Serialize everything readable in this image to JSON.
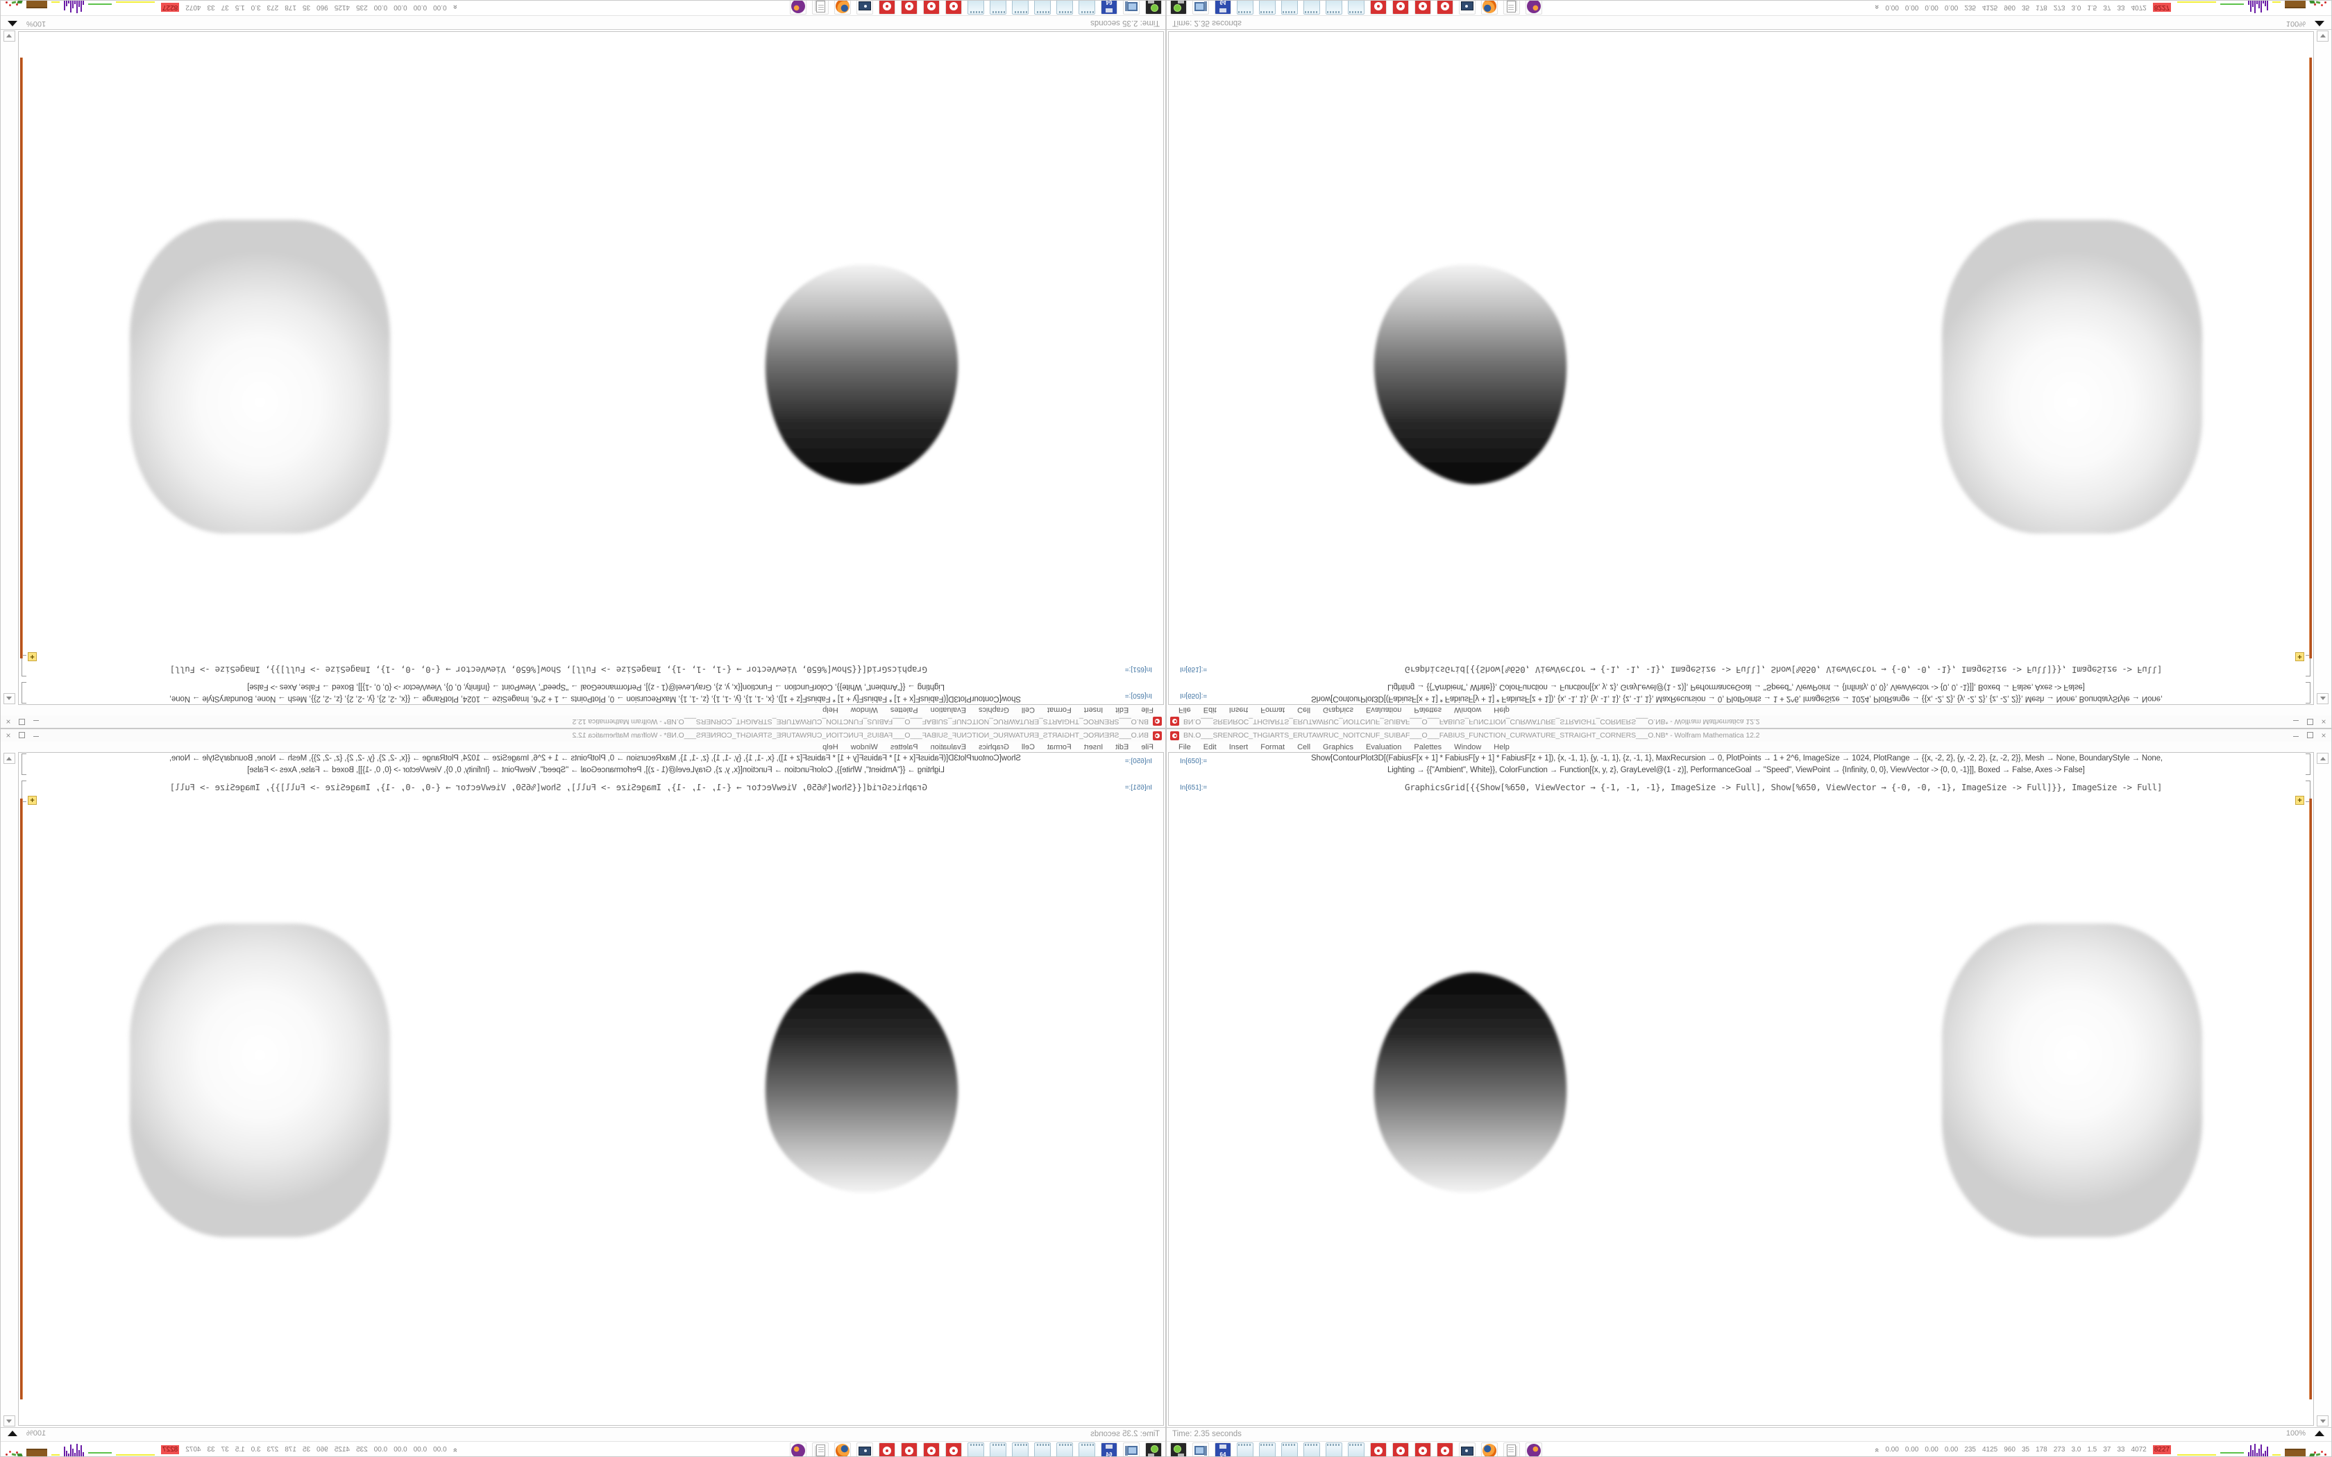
{
  "window": {
    "title": "BN.O___SRENROC_THGIARTS_ERUTAWRUC_NOITCNUF_SUIBAF___O___FABIUS_FUNCTION_CURWATURE_STRAIGHT_CORNERS___O.NB* - Wolfram Mathematica 12.2",
    "controls": {
      "close": "×"
    },
    "menu": [
      "File",
      "Edit",
      "Insert",
      "Format",
      "Cell",
      "Graphics",
      "Evaluation",
      "Palettes",
      "Window",
      "Help"
    ],
    "cells": [
      {
        "label": "In[650]:=",
        "lines": [
          "Show[ContourPlot3D[(FabiusF[x + 1] * FabiusF[y + 1] * FabiusF[z + 1]), {x, -1, 1}, {y, -1, 1}, {z, -1, 1}, MaxRecursion → 0, PlotPoints → 1 + 2^6, ImageSize → 1024, PlotRange → {{x, -2, 2}, {y, -2, 2}, {z, -2, 2}}, Mesh → None, BoundaryStyle → None,",
          "Lighting → {{\"Ambient\", White}}, ColorFunction → Function[{x, y, z}, GrayLevel@(1 - z)], PerformanceGoal → \"Speed\", ViewPoint → {Infinity, 0, 0}, ViewVector -> {0, 0, -1}]], Boxed → False, Axes -> False]"
        ]
      },
      {
        "label": "In[651]:=",
        "lines": [
          "GraphicsGrid[{{Show[%650, ViewVector → {-1, -1, -1}, ImageSize -> Full], Show[%650, ViewVector → {-0, -0, -1}, ImageSize -> Full]}}, ImageSize -> Full]"
        ]
      }
    ],
    "plus_badge": "+",
    "status": {
      "time": "Time: 2.35 seconds",
      "zoom": "100%"
    }
  },
  "taskbar": {
    "icons": [
      {
        "name": "screenshot-tool",
        "style": "shot"
      },
      {
        "name": "system-monitor",
        "style": "pc"
      },
      {
        "name": "floppy-64",
        "style": "floppy",
        "label": "64"
      },
      {
        "name": "notepad-1",
        "style": "note"
      },
      {
        "name": "notepad-2",
        "style": "note"
      },
      {
        "name": "notepad-3",
        "style": "note"
      },
      {
        "name": "notepad-4",
        "style": "note"
      },
      {
        "name": "notepad-5",
        "style": "note"
      },
      {
        "name": "notepad-6",
        "style": "note"
      },
      {
        "name": "mathematica-notebook-1",
        "style": "spikey"
      },
      {
        "name": "mathematica-notebook-2",
        "style": "spikey"
      },
      {
        "name": "mathematica-notebook-3",
        "style": "spikey"
      },
      {
        "name": "mathematica-notebook-4",
        "style": "spikey"
      },
      {
        "name": "screen-recorder",
        "style": "cam"
      },
      {
        "name": "firefox",
        "style": "firefox"
      },
      {
        "name": "document-viewer",
        "style": "docs"
      },
      {
        "name": "thunderbird",
        "style": "tbird"
      }
    ],
    "monitor": {
      "chevron": "«",
      "values": [
        "0.00",
        "0.00",
        "0.00",
        "0.00",
        "235",
        "4125",
        "960",
        "35",
        "178",
        "273",
        "3.0",
        "1.5",
        "37",
        "33",
        "4072"
      ],
      "badge": "8227"
    }
  },
  "colors": {
    "highlight_bracket_orange": "#b4511c",
    "badge_red": "#f05050",
    "spikey_red": "#d63030",
    "in_label_blue": "#4577a5"
  }
}
